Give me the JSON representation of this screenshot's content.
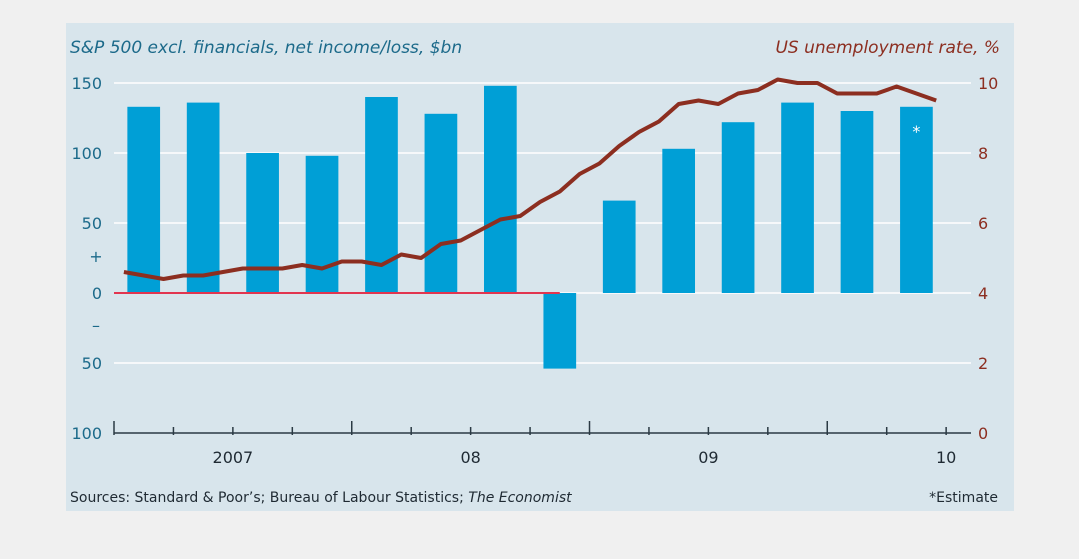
{
  "chart": {
    "left_title": "S&P 500 excl. financials, net income/loss, $bn",
    "right_title": "US unemployment rate, %",
    "source_prefix": "Sources: Standard & Poor’s; Bureau of Labour Statistics; ",
    "source_italic": "The Economist",
    "note": "*Estimate",
    "estimate_marker": "*",
    "plus_sign": "+",
    "minus_sign": "–"
  },
  "colors": {
    "bars": "#009fd6",
    "line": "#8c2e20",
    "zero_line": "#e2354f",
    "grid": "#ffffff",
    "background": "#d8e5ec"
  },
  "chart_data": {
    "type": "bar+line",
    "left_axis": {
      "ylim": [
        -100,
        150
      ],
      "ticks": [
        150,
        100,
        50,
        0,
        -50,
        -100
      ],
      "tick_labels": [
        "150",
        "100",
        "50",
        "0",
        "50",
        "100"
      ]
    },
    "right_axis": {
      "ylim": [
        0,
        10
      ],
      "ticks": [
        10,
        8,
        6,
        4,
        2,
        0
      ],
      "tick_labels": [
        "10",
        "8",
        "6",
        "4",
        "2",
        "0"
      ]
    },
    "x_axis": {
      "year_labels": [
        "2007",
        "08",
        "09",
        "10"
      ]
    },
    "bar_series": {
      "quarters": [
        "2007 Q1",
        "2007 Q2",
        "2007 Q3",
        "2007 Q4",
        "2008 Q1",
        "2008 Q2",
        "2008 Q3",
        "2008 Q4",
        "2009 Q1",
        "2009 Q2",
        "2009 Q3",
        "2009 Q4",
        "2010 Q1",
        "2010 Q2"
      ],
      "values": [
        133,
        136,
        100,
        98,
        140,
        128,
        148,
        -54,
        66,
        103,
        122,
        136,
        130,
        133
      ],
      "estimate_index": 13
    },
    "line_series": {
      "months": [
        "2007-01",
        "2007-02",
        "2007-03",
        "2007-04",
        "2007-05",
        "2007-06",
        "2007-07",
        "2007-08",
        "2007-09",
        "2007-10",
        "2007-11",
        "2007-12",
        "2008-01",
        "2008-02",
        "2008-03",
        "2008-04",
        "2008-05",
        "2008-06",
        "2008-07",
        "2008-08",
        "2008-09",
        "2008-10",
        "2008-11",
        "2008-12",
        "2009-01",
        "2009-02",
        "2009-03",
        "2009-04",
        "2009-05",
        "2009-06",
        "2009-07",
        "2009-08",
        "2009-09",
        "2009-10",
        "2009-11",
        "2009-12",
        "2010-01",
        "2010-02",
        "2010-03",
        "2010-04",
        "2010-05",
        "2010-06"
      ],
      "values": [
        4.6,
        4.5,
        4.4,
        4.5,
        4.5,
        4.6,
        4.7,
        4.7,
        4.7,
        4.8,
        4.7,
        4.9,
        4.9,
        4.8,
        5.1,
        5.0,
        5.4,
        5.5,
        5.8,
        6.1,
        6.2,
        6.6,
        6.9,
        7.4,
        7.7,
        8.2,
        8.6,
        8.9,
        9.4,
        9.5,
        9.4,
        9.7,
        9.8,
        10.1,
        10.0,
        10.0,
        9.7,
        9.7,
        9.7,
        9.9,
        9.7,
        9.5
      ]
    }
  }
}
